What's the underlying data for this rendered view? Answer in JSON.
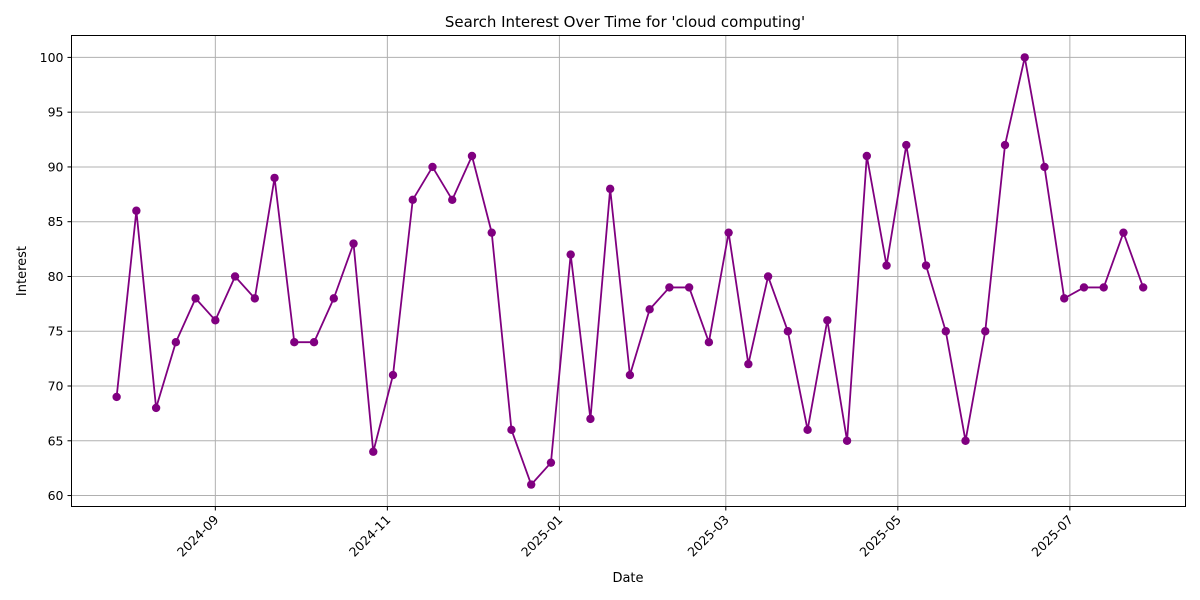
{
  "chart_data": {
    "type": "line",
    "title": "Search Interest Over Time for 'cloud computing'",
    "xlabel": "Date",
    "ylabel": "Interest",
    "x_axis_type": "date",
    "xlim": [
      "2024-07-12",
      "2025-08-11"
    ],
    "ylim": [
      59,
      102
    ],
    "y_ticks": [
      60,
      65,
      70,
      75,
      80,
      85,
      90,
      95,
      100
    ],
    "x_ticks": [
      {
        "date": "2024-09-01",
        "label": "2024-09"
      },
      {
        "date": "2024-11-01",
        "label": "2024-11"
      },
      {
        "date": "2025-01-01",
        "label": "2025-01"
      },
      {
        "date": "2025-03-01",
        "label": "2025-03"
      },
      {
        "date": "2025-05-01",
        "label": "2025-05"
      },
      {
        "date": "2025-07-01",
        "label": "2025-07"
      }
    ],
    "grid": true,
    "color": "#800080",
    "marker": "circle",
    "x": [
      "2024-07-28",
      "2024-08-04",
      "2024-08-11",
      "2024-08-18",
      "2024-08-25",
      "2024-09-01",
      "2024-09-08",
      "2024-09-15",
      "2024-09-22",
      "2024-09-29",
      "2024-10-06",
      "2024-10-13",
      "2024-10-20",
      "2024-10-27",
      "2024-11-03",
      "2024-11-10",
      "2024-11-17",
      "2024-11-24",
      "2024-12-01",
      "2024-12-08",
      "2024-12-15",
      "2024-12-22",
      "2024-12-29",
      "2025-01-05",
      "2025-01-12",
      "2025-01-19",
      "2025-01-26",
      "2025-02-02",
      "2025-02-09",
      "2025-02-16",
      "2025-02-23",
      "2025-03-02",
      "2025-03-09",
      "2025-03-16",
      "2025-03-23",
      "2025-03-30",
      "2025-04-06",
      "2025-04-13",
      "2025-04-20",
      "2025-04-27",
      "2025-05-04",
      "2025-05-11",
      "2025-05-18",
      "2025-05-25",
      "2025-06-01",
      "2025-06-08",
      "2025-06-15",
      "2025-06-22",
      "2025-06-29",
      "2025-07-06",
      "2025-07-13",
      "2025-07-20",
      "2025-07-27"
    ],
    "values": [
      69,
      86,
      68,
      74,
      78,
      76,
      80,
      78,
      89,
      74,
      74,
      78,
      83,
      64,
      71,
      87,
      90,
      87,
      91,
      84,
      66,
      61,
      63,
      82,
      67,
      88,
      71,
      77,
      79,
      79,
      74,
      84,
      72,
      80,
      75,
      66,
      76,
      65,
      91,
      81,
      92,
      81,
      75,
      65,
      75,
      92,
      100,
      90,
      78,
      79,
      79,
      84,
      79
    ]
  }
}
